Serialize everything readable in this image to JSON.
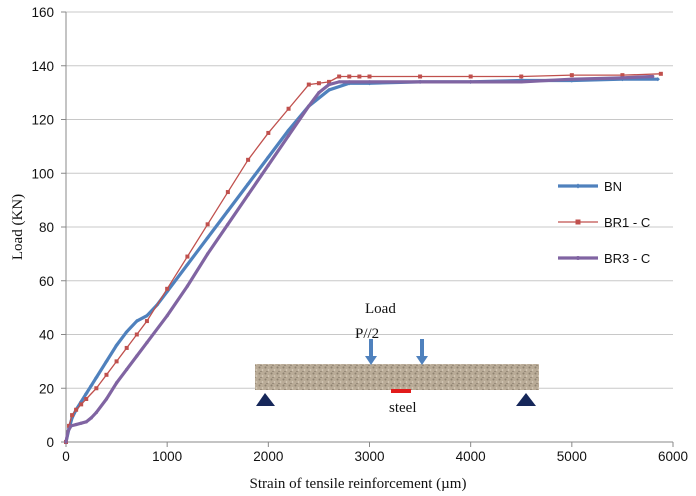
{
  "chart_data": {
    "type": "line",
    "xlabel": "Strain of  tensile  reinforcement  (µm)",
    "ylabel": "Load  (KN)",
    "xlim": [
      0,
      6000
    ],
    "ylim": [
      0,
      160
    ],
    "xticks": [
      0,
      1000,
      2000,
      3000,
      4000,
      5000,
      6000
    ],
    "yticks": [
      0,
      20,
      40,
      60,
      80,
      100,
      120,
      140,
      160
    ],
    "grid": "horizontal",
    "legend_position": "right",
    "series": [
      {
        "name": "BN",
        "color": "#4f81bd",
        "marker": "diamond",
        "x": [
          0,
          30,
          60,
          100,
          150,
          200,
          250,
          300,
          400,
          500,
          600,
          700,
          800,
          900,
          1000,
          1200,
          1400,
          1600,
          1800,
          2000,
          2200,
          2400,
          2600,
          2800,
          3000,
          3500,
          4000,
          4500,
          5000,
          5500,
          5850
        ],
        "y": [
          0,
          5,
          9,
          12,
          15,
          18,
          21,
          24,
          30,
          36,
          41,
          45,
          47,
          51,
          56,
          66,
          76,
          86,
          96,
          106,
          116,
          125,
          131,
          133.5,
          133.5,
          134,
          134,
          134.5,
          134.5,
          135,
          135
        ]
      },
      {
        "name": "BR1 - C",
        "color": "#c0504d",
        "marker": "square",
        "x": [
          0,
          30,
          60,
          100,
          150,
          200,
          300,
          400,
          500,
          600,
          700,
          800,
          1000,
          1200,
          1400,
          1600,
          1800,
          2000,
          2200,
          2400,
          2500,
          2600,
          2700,
          2800,
          2900,
          3000,
          3500,
          4000,
          4500,
          5000,
          5500,
          5880
        ],
        "y": [
          0,
          6,
          10,
          12,
          14,
          16,
          20,
          25,
          30,
          35,
          40,
          45,
          57,
          69,
          81,
          93,
          105,
          115,
          124,
          133,
          133.5,
          134,
          136,
          136,
          136,
          136,
          136,
          136,
          136,
          136.5,
          136.5,
          137
        ]
      },
      {
        "name": "BR3 - C",
        "color": "#8064a2",
        "marker": "circle",
        "x": [
          0,
          20,
          50,
          100,
          150,
          200,
          250,
          300,
          400,
          500,
          600,
          700,
          800,
          1000,
          1200,
          1400,
          1600,
          1800,
          2000,
          2200,
          2400,
          2500,
          2600,
          2700,
          2800,
          3000,
          3500,
          4000,
          4500,
          5000,
          5500,
          5800
        ],
        "y": [
          0,
          4,
          6,
          6.5,
          7,
          7.5,
          9,
          11,
          16,
          22,
          27,
          32,
          37,
          47,
          58,
          70,
          81,
          92,
          103,
          114,
          125,
          130,
          133,
          134,
          134,
          134,
          134,
          134,
          134,
          135,
          135.5,
          136
        ]
      }
    ],
    "inset": {
      "load_label": "Load",
      "half_load_label": "P//2",
      "steel_label": "steel"
    }
  }
}
